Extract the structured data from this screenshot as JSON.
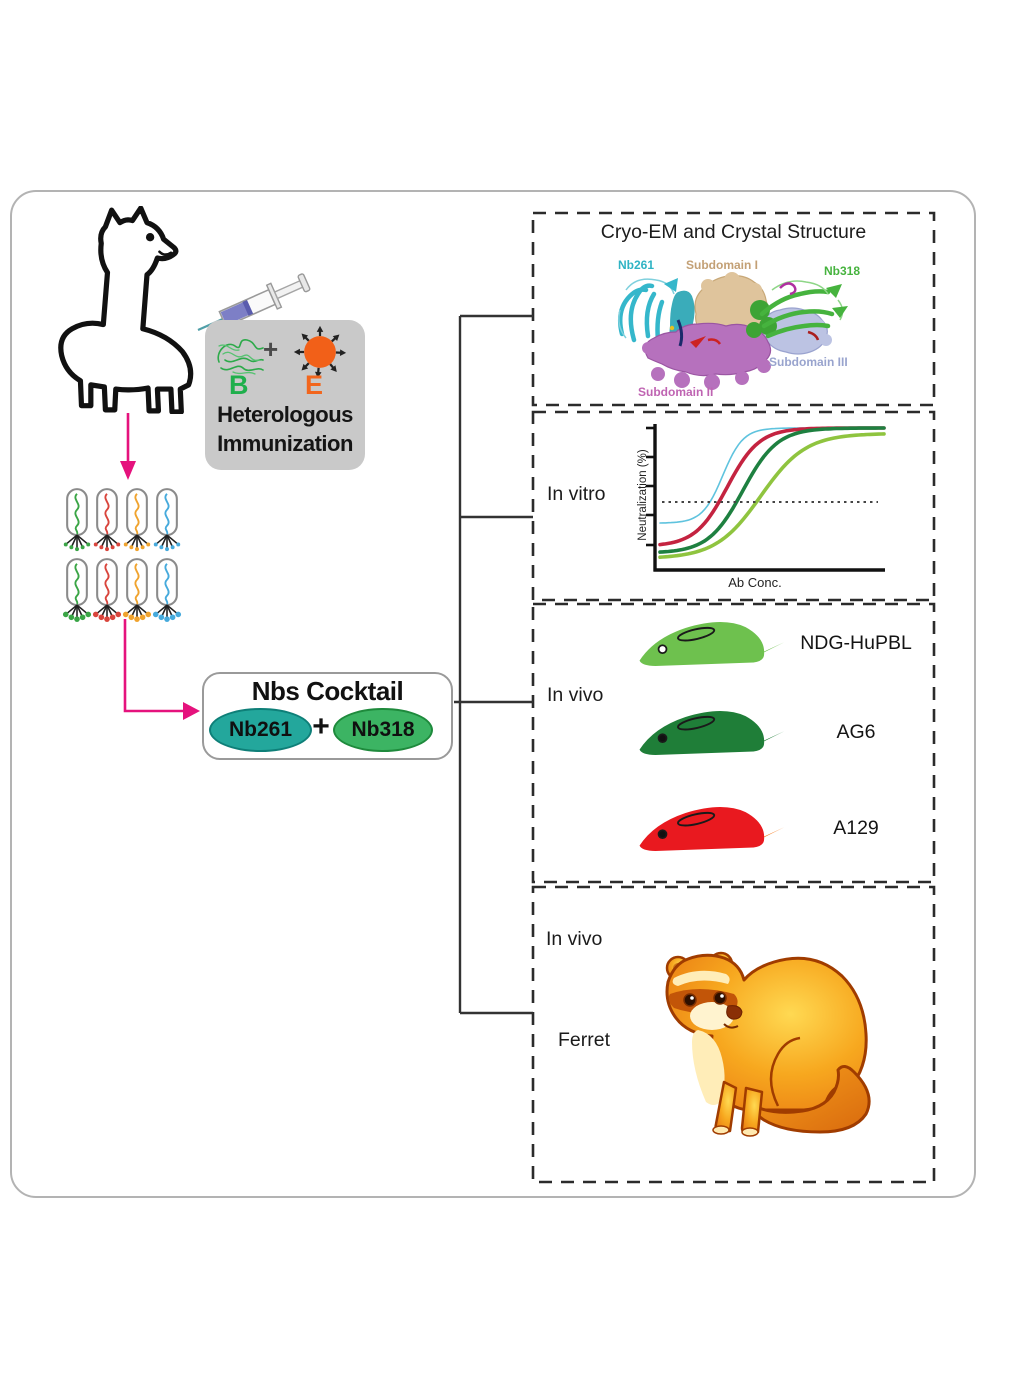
{
  "figure": {
    "immunization": {
      "heading_line1": "Heterologous",
      "heading_line2": "Immunization",
      "antigen_b": "B",
      "antigen_b_color": "#1faf4c",
      "antigen_e": "E",
      "antigen_e_color": "#f2661d",
      "plus": "+"
    },
    "phage_colors": [
      "#3aa546",
      "#d9453c",
      "#f0a32e",
      "#46aadc"
    ],
    "flow_arrow_color": "#e5127d",
    "cocktail": {
      "title": "Nbs Cocktail",
      "nb_left": "Nb261",
      "nb_left_color": "#23a79c",
      "plus": "+",
      "nb_right": "Nb318",
      "nb_right_color": "#3cb463"
    },
    "panel_cryoem": {
      "title": "Cryo-EM and Crystal Structure",
      "label_nb261": "Nb261",
      "color_nb261": "#2fb3c4",
      "label_subdomain1": "Subdomain I",
      "color_subdomain1": "#c3a075",
      "label_nb318": "Nb318",
      "color_nb318": "#46b33e",
      "label_subdomain3": "Subdomain III",
      "color_subdomain3": "#99a4ce",
      "label_subdomain2": "Subdomain II",
      "color_subdomain2": "#bf64b2"
    },
    "panel_invitro": {
      "label": "In vitro"
    },
    "panel_mice": {
      "label": "In vivo",
      "mice": [
        {
          "name": "NDG-HuPBL",
          "body": "#6ec14e",
          "tail": "#6ec14e",
          "eye": "#ffffff"
        },
        {
          "name": "AG6",
          "body": "#1f7e38",
          "tail": "#1f7e38",
          "eye": "#111111"
        },
        {
          "name": "A129",
          "body": "#e9191f",
          "tail": "#f57b20",
          "eye": "#111111"
        }
      ]
    },
    "panel_ferret": {
      "label": "In vivo",
      "animal": "Ferret"
    }
  },
  "chart_data": {
    "type": "line",
    "title": "",
    "xlabel": "Ab Conc.",
    "ylabel": "Neutralization (%)",
    "x_range": [
      0,
      1
    ],
    "y_range": [
      0,
      100
    ],
    "threshold_line_y": 50,
    "grid": false,
    "legend": "none",
    "series": [
      {
        "name": "curve-cyan",
        "color": "#5fc3de",
        "stroke_width": 1.6,
        "bottom": 30,
        "top": 100,
        "midpoint": 0.28,
        "steepness": 22
      },
      {
        "name": "curve-crimson",
        "color": "#c42340",
        "stroke_width": 3.6,
        "bottom": 13,
        "top": 100,
        "midpoint": 0.3,
        "steepness": 14
      },
      {
        "name": "curve-darkgreen",
        "color": "#1e8040",
        "stroke_width": 3.6,
        "bottom": 8,
        "top": 100,
        "midpoint": 0.37,
        "steepness": 13
      },
      {
        "name": "curve-yellowgreen",
        "color": "#8fc43f",
        "stroke_width": 3.6,
        "bottom": 4,
        "top": 96,
        "midpoint": 0.45,
        "steepness": 10
      }
    ]
  }
}
